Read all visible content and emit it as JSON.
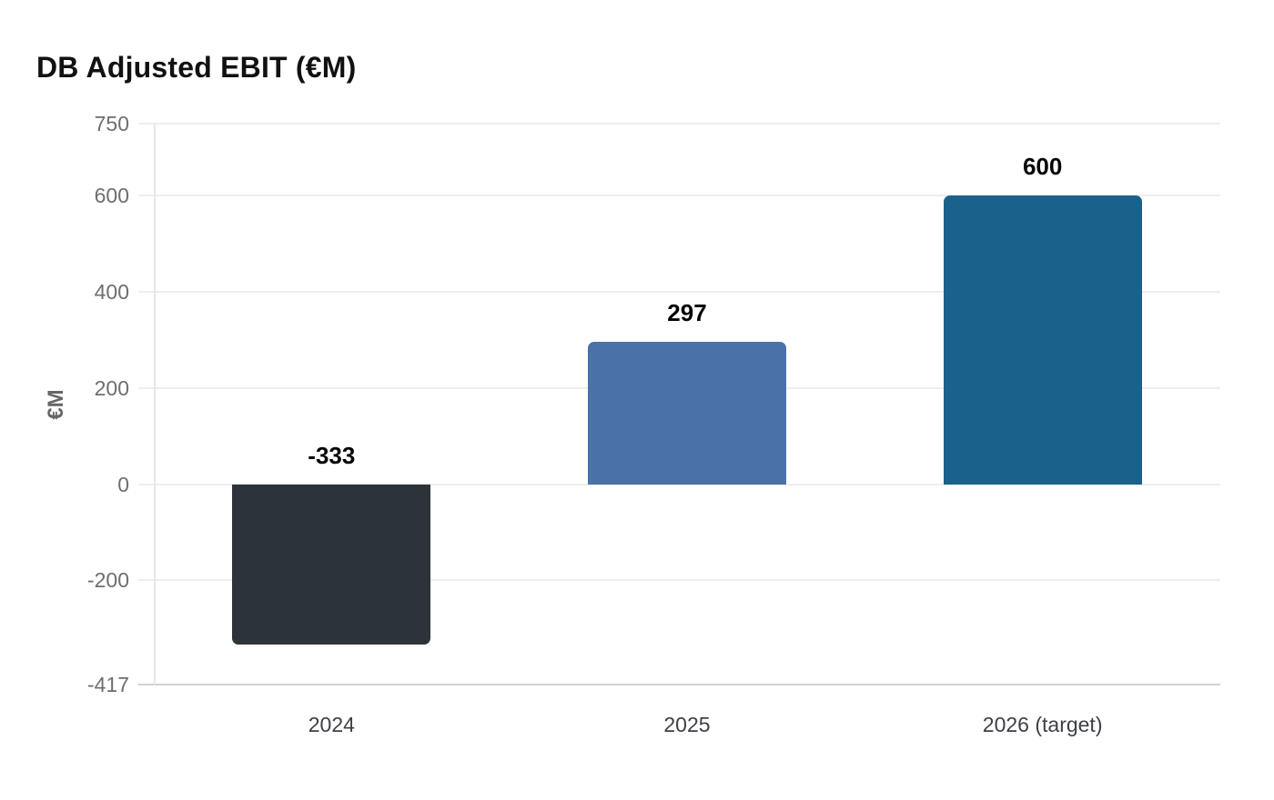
{
  "title": "DB Adjusted EBIT (€M)",
  "chart_data": {
    "type": "bar",
    "title": "DB Adjusted EBIT (€M)",
    "ylabel": "€M",
    "xlabel": "",
    "categories": [
      "2024",
      "2025",
      "2026 (target)"
    ],
    "values": [
      -333,
      297,
      600
    ],
    "value_labels": [
      "-333",
      "297",
      "600"
    ],
    "bar_colors": [
      "#2d3439",
      "#4b71a9",
      "#1a618c"
    ],
    "ylim": [
      -417,
      750
    ],
    "yticks": [
      750,
      600,
      400,
      200,
      0,
      -200,
      -417
    ],
    "grid": true,
    "legend": false,
    "colors": {
      "background": "#ffffff",
      "grid": "#ededed",
      "y_axis_line": "#e6e6e6",
      "x_axis_line": "#d2d2d2",
      "tick_label": "#6e6e6e",
      "x_label": "#3d4045",
      "value_label": "#050505",
      "title": "#111111",
      "y_title": "#666666"
    }
  }
}
